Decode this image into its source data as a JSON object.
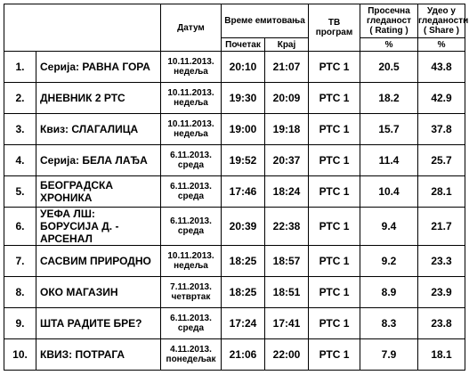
{
  "header": {
    "date": "Датум",
    "broadcast_time": "Време емитовања",
    "start": "Почетак",
    "end": "Крај",
    "channel": [
      "ТВ",
      "програм"
    ],
    "rating": [
      "Просечна",
      "гледаност",
      "( Rating )"
    ],
    "share": [
      "Удео у",
      "гледаности",
      "( Share )"
    ],
    "rating_unit": "%",
    "share_unit": "%"
  },
  "rows": [
    {
      "num": "1.",
      "show": [
        "Серија: РАВНА ГОРА"
      ],
      "date": "10.11.2013.",
      "day": "недеља",
      "start": "20:10",
      "end": "21:07",
      "channel": "РТС 1",
      "rating": "20.5",
      "share": "43.8"
    },
    {
      "num": "2.",
      "show": [
        "ДНЕВНИК 2  РТС"
      ],
      "date": "10.11.2013.",
      "day": "недеља",
      "start": "19:30",
      "end": "20:09",
      "channel": "РТС 1",
      "rating": "18.2",
      "share": "42.9"
    },
    {
      "num": "3.",
      "show": [
        "Квиз:  СЛАГАЛИЦА"
      ],
      "date": "10.11.2013.",
      "day": "недеља",
      "start": "19:00",
      "end": "19:18",
      "channel": "РТС 1",
      "rating": "15.7",
      "share": "37.8"
    },
    {
      "num": "4.",
      "show": [
        "Серија: БЕЛА ЛАЂА"
      ],
      "date": "6.11.2013.",
      "day": "среда",
      "start": "19:52",
      "end": "20:37",
      "channel": "РТС 1",
      "rating": "11.4",
      "share": "25.7"
    },
    {
      "num": "5.",
      "show": [
        "БЕОГРАДСКА ХРОНИКА"
      ],
      "date": "6.11.2013.",
      "day": "среда",
      "start": "17:46",
      "end": "18:24",
      "channel": "РТС 1",
      "rating": "10.4",
      "share": "28.1"
    },
    {
      "num": "6.",
      "show": [
        "УЕФА ЛШ:",
        "БОРУСИЈА Д. - АРСЕНАЛ"
      ],
      "date": "6.11.2013.",
      "day": "среда",
      "start": "20:39",
      "end": "22:38",
      "channel": "РТС 1",
      "rating": "9.4",
      "share": "21.7"
    },
    {
      "num": "7.",
      "show": [
        "САСВИМ ПРИРОДНО"
      ],
      "date": "10.11.2013.",
      "day": "недеља",
      "start": "18:25",
      "end": "18:57",
      "channel": "РТС 1",
      "rating": "9.2",
      "share": "23.3"
    },
    {
      "num": "8.",
      "show": [
        "ОКО МАГАЗИН"
      ],
      "date": "7.11.2013.",
      "day": "четвртак",
      "start": "18:25",
      "end": "18:51",
      "channel": "РТС 1",
      "rating": "8.9",
      "share": "23.9"
    },
    {
      "num": "9.",
      "show": [
        "ШТА РАДИТЕ БРЕ?"
      ],
      "date": "6.11.2013.",
      "day": "среда",
      "start": "17:24",
      "end": "17:41",
      "channel": "РТС 1",
      "rating": "8.3",
      "share": "23.8"
    },
    {
      "num": "10.",
      "show": [
        "КВИЗ: ПОТРАГА"
      ],
      "date": "4.11.2013.",
      "day": "понедељак",
      "start": "21:06",
      "end": "22:00",
      "channel": "РТС 1",
      "rating": "7.9",
      "share": "18.1"
    }
  ]
}
